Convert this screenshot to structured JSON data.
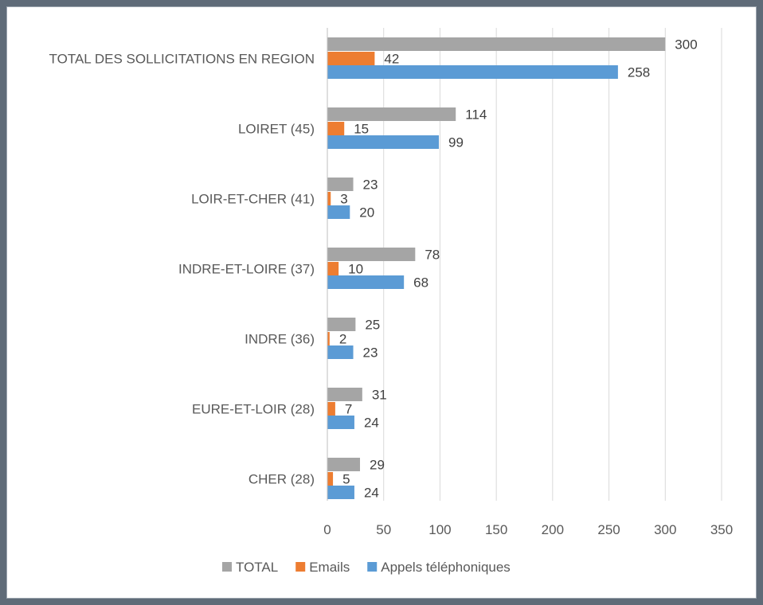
{
  "chart_data": {
    "type": "bar",
    "orientation": "horizontal",
    "categories": [
      "TOTAL DES SOLLICITATIONS EN REGION",
      "LOIRET (45)",
      "LOIR-ET-CHER (41)",
      "INDRE-ET-LOIRE (37)",
      "INDRE (36)",
      "EURE-ET-LOIR (28)",
      "CHER (28)"
    ],
    "series": [
      {
        "name": "TOTAL",
        "color": "#a5a5a5",
        "values": [
          300,
          114,
          23,
          78,
          25,
          31,
          29
        ]
      },
      {
        "name": "Emails",
        "color": "#ed7d31",
        "values": [
          42,
          15,
          3,
          10,
          2,
          7,
          5
        ]
      },
      {
        "name": "Appels téléphoniques",
        "color": "#5b9bd5",
        "values": [
          258,
          99,
          20,
          68,
          23,
          24,
          24
        ]
      }
    ],
    "xlim": [
      0,
      350
    ],
    "xticks": [
      0,
      50,
      100,
      150,
      200,
      250,
      300,
      350
    ],
    "grid": "vertical",
    "legend_position": "bottom",
    "title": "",
    "xlabel": "",
    "ylabel": ""
  }
}
